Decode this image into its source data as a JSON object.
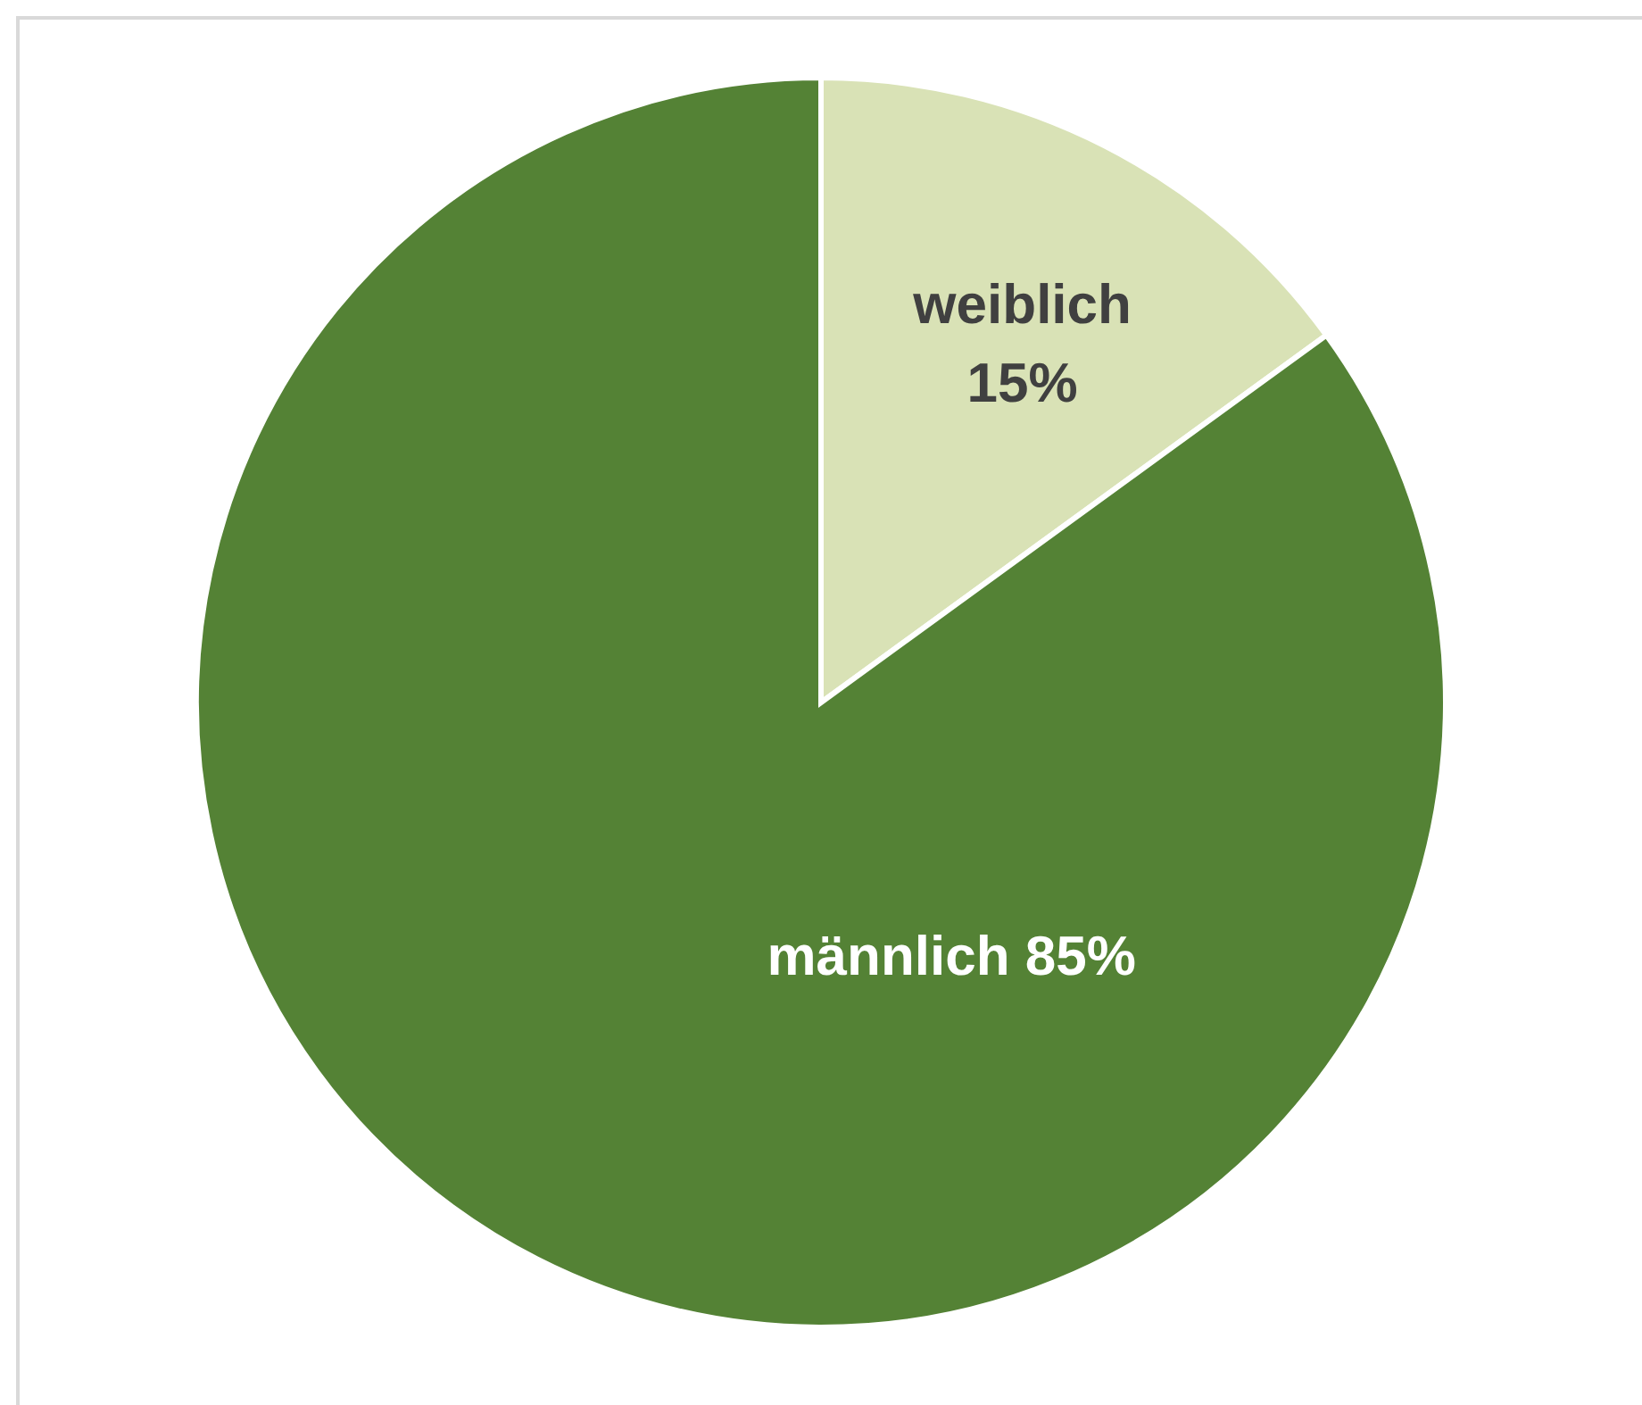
{
  "chart_data": {
    "type": "pie",
    "categories": [
      "weiblich",
      "männlich"
    ],
    "values": [
      15,
      85
    ],
    "colors": [
      "#d9e2b6",
      "#548235"
    ],
    "value_labels": [
      "15%",
      "85%"
    ]
  }
}
